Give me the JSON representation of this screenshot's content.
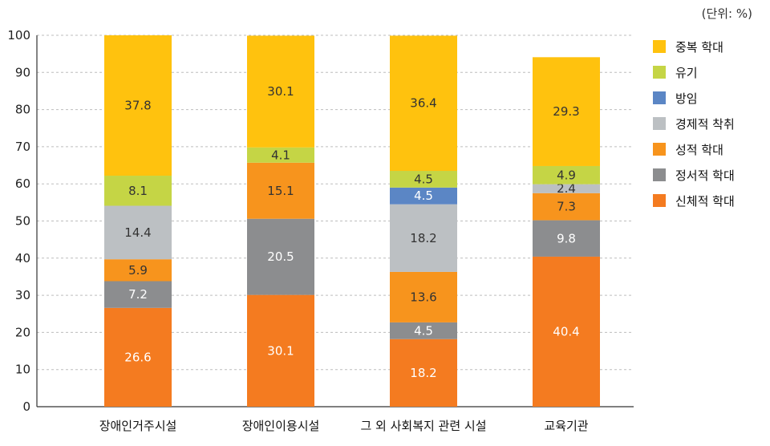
{
  "unit_label": "(단위: %)",
  "chart_data": {
    "type": "bar",
    "stacked": true,
    "categories": [
      "장애인거주시설",
      "장애인이용시설",
      "그 외 사회복지 관련 시설",
      "교육기관"
    ],
    "ylim": [
      0,
      100
    ],
    "yticks": [
      0,
      10,
      20,
      30,
      40,
      50,
      60,
      70,
      80,
      90,
      100
    ],
    "grid": true,
    "legend_position": "right",
    "series": [
      {
        "name": "신체적 학대",
        "color": "#F47B20",
        "values": [
          26.6,
          30.1,
          18.2,
          40.4
        ],
        "labels": [
          "26.6",
          "30.1",
          "18.2",
          "40.4"
        ]
      },
      {
        "name": "정서적 학대",
        "color": "#8C8D8F",
        "values": [
          7.2,
          20.5,
          4.5,
          9.8
        ],
        "labels": [
          "7.2",
          "20.5",
          "4.5",
          "9.8"
        ]
      },
      {
        "name": "성적 학대",
        "color": "#F7941D",
        "values": [
          5.9,
          15.1,
          13.6,
          7.3
        ],
        "labels": [
          "5.9",
          "15.1",
          "13.6",
          "7.3"
        ]
      },
      {
        "name": "경제적 착취",
        "color": "#BCC0C3",
        "values": [
          14.4,
          0,
          18.2,
          2.4
        ],
        "labels": [
          "14.4",
          "",
          "18.2",
          "2.4"
        ]
      },
      {
        "name": "방임",
        "color": "#5B86C5",
        "values": [
          0,
          0,
          4.5,
          0
        ],
        "labels": [
          "",
          "",
          "4.5",
          ""
        ]
      },
      {
        "name": "유기",
        "color": "#C5D545",
        "values": [
          8.1,
          4.1,
          4.5,
          4.9
        ],
        "labels": [
          "8.1",
          "4.1",
          "4.5",
          "4.9"
        ]
      },
      {
        "name": "중복 학대",
        "color": "#FFC20E",
        "values": [
          37.8,
          30.1,
          36.4,
          29.3
        ],
        "labels": [
          "37.8",
          "30.1",
          "36.4",
          "29.3"
        ]
      }
    ],
    "legend_order": [
      "중복 학대",
      "유기",
      "방임",
      "경제적 착취",
      "성적 학대",
      "정서적 학대",
      "신체적 학대"
    ]
  }
}
